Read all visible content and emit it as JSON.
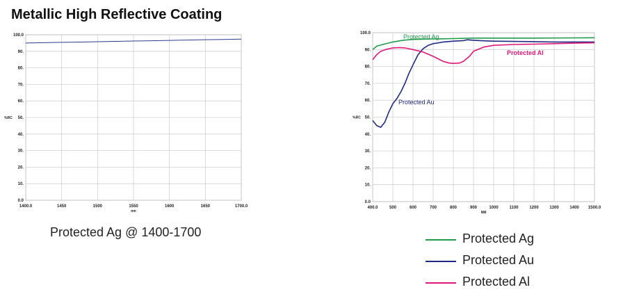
{
  "page": {
    "title": "Metallic High Reflective Coating"
  },
  "chart_data": [
    {
      "type": "line",
      "caption": "Protected Ag @ 1400-1700",
      "ylabel": "%RC",
      "xlabel": "nm",
      "xlim": [
        1400,
        1700
      ],
      "ylim": [
        0,
        100
      ],
      "xticks": [
        1400,
        1450,
        1500,
        1550,
        1600,
        1650,
        1700
      ],
      "xtick_labels": [
        "1400.0",
        "1450",
        "1500",
        "1550",
        "1600",
        "1650",
        "1700.0"
      ],
      "yticks": [
        0,
        10,
        20,
        30,
        40,
        50,
        60,
        70,
        80,
        90,
        100
      ],
      "ytick_labels": [
        "0.0",
        "10.",
        "20.",
        "30.",
        "40.",
        "50.",
        "60.",
        "70.",
        "80.",
        "90.",
        "100.0"
      ],
      "series": [
        {
          "key": "ag_ir",
          "color": "#2a3b8f",
          "x": [
            1400,
            1425,
            1450,
            1475,
            1500,
            1525,
            1550,
            1575,
            1600,
            1625,
            1650,
            1675,
            1700
          ],
          "y": [
            95.0,
            95.2,
            95.4,
            95.6,
            95.8,
            96.0,
            96.2,
            96.4,
            96.6,
            96.8,
            97.0,
            97.2,
            97.4
          ]
        }
      ]
    },
    {
      "type": "line",
      "ylabel": "%RC",
      "xlabel": "NM",
      "xlim": [
        400,
        1500
      ],
      "ylim": [
        0,
        100
      ],
      "xticks": [
        400,
        500,
        600,
        700,
        800,
        900,
        1000,
        1100,
        1200,
        1300,
        1400,
        1500
      ],
      "xtick_labels": [
        "400.0",
        "500",
        "600",
        "700",
        "800",
        "900",
        "1000",
        "1100",
        "1200",
        "1300",
        "1400",
        "1500.0"
      ],
      "yticks": [
        0,
        10,
        20,
        30,
        40,
        50,
        60,
        70,
        80,
        90,
        100
      ],
      "ytick_labels": [
        "0.0",
        "10.",
        "20.",
        "30.",
        "40.",
        "50.",
        "60.",
        "70.",
        "80.",
        "90.",
        "100.0"
      ],
      "series": [
        {
          "name": "Protected Ag",
          "color": "#1f9a4a",
          "x": [
            400,
            420,
            450,
            500,
            550,
            600,
            700,
            800,
            900,
            1000,
            1200,
            1400,
            1500
          ],
          "y": [
            90,
            92,
            93,
            94.5,
            95.5,
            96,
            96.3,
            96.5,
            96.8,
            96.8,
            96.8,
            96.9,
            97
          ]
        },
        {
          "name": "Protected Au",
          "color": "#1f2a80",
          "x": [
            400,
            420,
            440,
            460,
            480,
            500,
            520,
            540,
            560,
            580,
            600,
            625,
            650,
            675,
            700,
            750,
            800,
            850,
            870,
            900,
            950,
            1000,
            1100,
            1200,
            1300,
            1400,
            1500
          ],
          "y": [
            48,
            45,
            44,
            47,
            53,
            58,
            61,
            65,
            70,
            76,
            81,
            87,
            90.5,
            92.5,
            93.5,
            94.5,
            95,
            95.3,
            95.8,
            95.5,
            95.2,
            95,
            94.8,
            94.7,
            94.5,
            94.5,
            94.5
          ]
        },
        {
          "name": "Protected Al",
          "color": "#e0187a",
          "x": [
            400,
            420,
            440,
            470,
            500,
            530,
            560,
            600,
            650,
            700,
            750,
            780,
            800,
            830,
            850,
            880,
            900,
            950,
            1000,
            1100,
            1200,
            1300,
            1400,
            1500
          ],
          "y": [
            84,
            87,
            89,
            90.2,
            91,
            91.2,
            91,
            90,
            88.5,
            86,
            83,
            82,
            81.8,
            82,
            83,
            86,
            89,
            91.5,
            92.5,
            93,
            93.2,
            93.5,
            93.8,
            94
          ]
        }
      ],
      "annotations": [
        {
          "text": "Protected Ag",
          "series": "Protected Ag"
        },
        {
          "text": "Protected Au",
          "series": "Protected Au"
        },
        {
          "text": "Protected Al",
          "series": "Protected Al"
        }
      ]
    }
  ],
  "legend": [
    {
      "label": "Protected Ag",
      "color": "#1f9a4a"
    },
    {
      "label": "Protected Au",
      "color": "#1f2a80"
    },
    {
      "label": "Protected Al",
      "color": "#e0187a"
    }
  ]
}
